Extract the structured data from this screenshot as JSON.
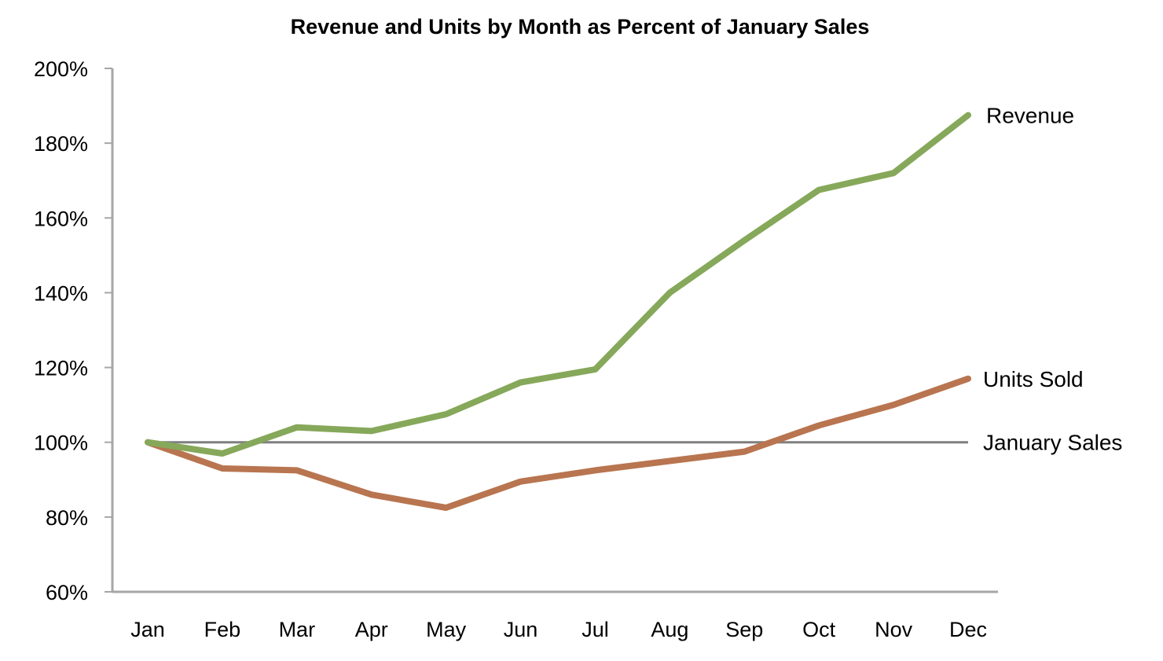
{
  "chart_data": {
    "type": "line",
    "title": "Revenue and Units by Month as Percent of January Sales",
    "xlabel": "",
    "ylabel": "",
    "categories": [
      "Jan",
      "Feb",
      "Mar",
      "Apr",
      "May",
      "Jun",
      "Jul",
      "Aug",
      "Sep",
      "Oct",
      "Nov",
      "Dec"
    ],
    "ylim": [
      60,
      200
    ],
    "yticks": [
      60,
      80,
      100,
      120,
      140,
      160,
      180,
      200
    ],
    "ytick_labels": [
      "60%",
      "80%",
      "100%",
      "120%",
      "140%",
      "160%",
      "180%",
      "200%"
    ],
    "grid": false,
    "legend": "direct-labels-right",
    "series": [
      {
        "name": "Revenue",
        "color": "#86a85a",
        "values": [
          100,
          97,
          104,
          103,
          107.5,
          116,
          119.5,
          140,
          154,
          167.5,
          172,
          187.5
        ]
      },
      {
        "name": "Units Sold",
        "color": "#b87550",
        "values": [
          100,
          93,
          92.5,
          86,
          82.5,
          89.5,
          92.5,
          95,
          97.5,
          104.5,
          110,
          117
        ]
      },
      {
        "name": "January Sales",
        "color": "#7f7f7f",
        "values": [
          100,
          100,
          100,
          100,
          100,
          100,
          100,
          100,
          100,
          100,
          100,
          100
        ]
      }
    ],
    "axis_color": "#a6a6a6"
  }
}
